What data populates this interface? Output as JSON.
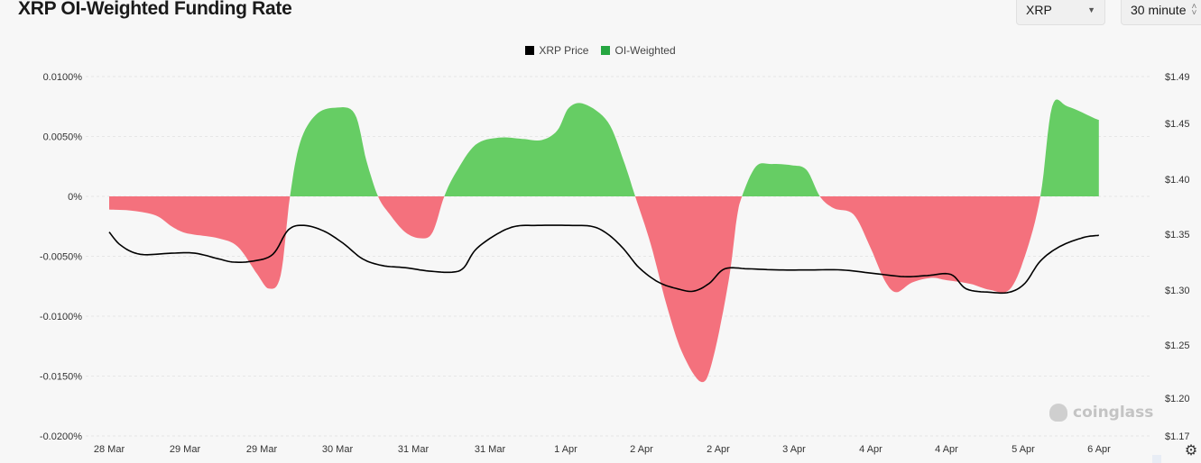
{
  "header": {
    "title": "XRP OI-Weighted Funding Rate",
    "symbol_select": "XRP",
    "interval_select": "30 minute"
  },
  "legend": {
    "items": [
      {
        "label": "XRP Price",
        "color": "#000000"
      },
      {
        "label": "OI-Weighted",
        "color": "#26a641"
      }
    ]
  },
  "watermark": "coinglass",
  "colors": {
    "positive": "#66cd64",
    "negative": "#f4717d",
    "price_line": "#000000",
    "grid": "#e6e6e6"
  },
  "chart_data": {
    "type": "area",
    "x_tick_labels": [
      "28 Mar",
      "29 Mar",
      "29 Mar",
      "30 Mar",
      "31 Mar",
      "31 Mar",
      "1 Apr",
      "2 Apr",
      "2 Apr",
      "3 Apr",
      "4 Apr",
      "4 Apr",
      "5 Apr",
      "6 Apr"
    ],
    "y_left": {
      "label": "",
      "ticks": [
        "0.0100%",
        "0.0050%",
        "0%",
        "-0.0050%",
        "-0.0100%",
        "-0.0150%",
        "-0.0200%"
      ],
      "range": [
        -0.02,
        0.01
      ]
    },
    "y_right": {
      "label": "",
      "ticks": [
        "$1.49",
        "$1.45",
        "$1.40",
        "$1.35",
        "$1.30",
        "$1.25",
        "$1.20",
        "$1.17"
      ],
      "range": [
        1.17,
        1.49
      ]
    },
    "x_range": [
      0,
      13.2
    ],
    "series": [
      {
        "name": "OI-Weighted",
        "axis": "left",
        "points": [
          [
            0.0,
            -0.0011
          ],
          [
            0.3,
            -0.0012
          ],
          [
            0.6,
            -0.0016
          ],
          [
            0.8,
            -0.0025
          ],
          [
            0.95,
            -0.003
          ],
          [
            1.1,
            -0.0032
          ],
          [
            1.4,
            -0.0035
          ],
          [
            1.65,
            -0.0042
          ],
          [
            1.9,
            -0.0065
          ],
          [
            2.05,
            -0.0077
          ],
          [
            2.2,
            -0.0066
          ],
          [
            2.32,
            0.0
          ],
          [
            2.45,
            0.0045
          ],
          [
            2.65,
            0.0068
          ],
          [
            2.9,
            0.0074
          ],
          [
            3.15,
            0.0069
          ],
          [
            3.3,
            0.003
          ],
          [
            3.45,
            0.0
          ],
          [
            3.6,
            -0.0015
          ],
          [
            3.8,
            -0.003
          ],
          [
            4.0,
            -0.0035
          ],
          [
            4.15,
            -0.003
          ],
          [
            4.3,
            0.0
          ],
          [
            4.45,
            0.002
          ],
          [
            4.7,
            0.0043
          ],
          [
            5.0,
            0.0049
          ],
          [
            5.3,
            0.0048
          ],
          [
            5.55,
            0.0047
          ],
          [
            5.75,
            0.0055
          ],
          [
            5.9,
            0.0074
          ],
          [
            6.1,
            0.0077
          ],
          [
            6.4,
            0.0062
          ],
          [
            6.6,
            0.003
          ],
          [
            6.75,
            0.0
          ],
          [
            6.95,
            -0.004
          ],
          [
            7.15,
            -0.009
          ],
          [
            7.35,
            -0.013
          ],
          [
            7.6,
            -0.0155
          ],
          [
            7.75,
            -0.0135
          ],
          [
            7.95,
            -0.007
          ],
          [
            8.05,
            -0.002
          ],
          [
            8.12,
            0.0
          ],
          [
            8.3,
            0.0025
          ],
          [
            8.5,
            0.0027
          ],
          [
            8.75,
            0.0026
          ],
          [
            8.95,
            0.0022
          ],
          [
            9.12,
            0.0
          ],
          [
            9.3,
            -0.001
          ],
          [
            9.55,
            -0.0015
          ],
          [
            9.75,
            -0.004
          ],
          [
            9.95,
            -0.007
          ],
          [
            10.1,
            -0.008
          ],
          [
            10.3,
            -0.0072
          ],
          [
            10.55,
            -0.0068
          ],
          [
            10.75,
            -0.007
          ],
          [
            11.05,
            -0.0073
          ],
          [
            11.3,
            -0.0078
          ],
          [
            11.55,
            -0.0078
          ],
          [
            11.75,
            -0.005
          ],
          [
            11.95,
            0.0
          ],
          [
            12.1,
            0.0075
          ],
          [
            12.3,
            0.0075
          ],
          [
            12.65,
            0.0065
          ],
          [
            12.7,
            0.0064
          ]
        ]
      },
      {
        "name": "XRP Price",
        "axis": "right",
        "points": [
          [
            0.0,
            1.352
          ],
          [
            0.15,
            1.34
          ],
          [
            0.4,
            1.332
          ],
          [
            0.8,
            1.333
          ],
          [
            1.1,
            1.333
          ],
          [
            1.4,
            1.328
          ],
          [
            1.6,
            1.325
          ],
          [
            1.85,
            1.326
          ],
          [
            2.1,
            1.332
          ],
          [
            2.3,
            1.354
          ],
          [
            2.5,
            1.358
          ],
          [
            2.75,
            1.353
          ],
          [
            3.0,
            1.342
          ],
          [
            3.25,
            1.328
          ],
          [
            3.5,
            1.322
          ],
          [
            3.8,
            1.32
          ],
          [
            4.1,
            1.317
          ],
          [
            4.4,
            1.316
          ],
          [
            4.55,
            1.32
          ],
          [
            4.7,
            1.336
          ],
          [
            4.95,
            1.349
          ],
          [
            5.2,
            1.357
          ],
          [
            5.5,
            1.358
          ],
          [
            5.9,
            1.358
          ],
          [
            6.2,
            1.357
          ],
          [
            6.4,
            1.35
          ],
          [
            6.6,
            1.337
          ],
          [
            6.8,
            1.32
          ],
          [
            7.05,
            1.307
          ],
          [
            7.3,
            1.301
          ],
          [
            7.5,
            1.299
          ],
          [
            7.7,
            1.306
          ],
          [
            7.9,
            1.319
          ],
          [
            8.2,
            1.319
          ],
          [
            8.6,
            1.318
          ],
          [
            9.0,
            1.318
          ],
          [
            9.4,
            1.318
          ],
          [
            9.8,
            1.315
          ],
          [
            10.2,
            1.312
          ],
          [
            10.5,
            1.313
          ],
          [
            10.8,
            1.314
          ],
          [
            11.0,
            1.301
          ],
          [
            11.3,
            1.298
          ],
          [
            11.55,
            1.298
          ],
          [
            11.75,
            1.306
          ],
          [
            11.95,
            1.326
          ],
          [
            12.2,
            1.339
          ],
          [
            12.5,
            1.347
          ],
          [
            12.7,
            1.349
          ]
        ]
      }
    ],
    "grid": true,
    "legend_position": "top-center"
  }
}
